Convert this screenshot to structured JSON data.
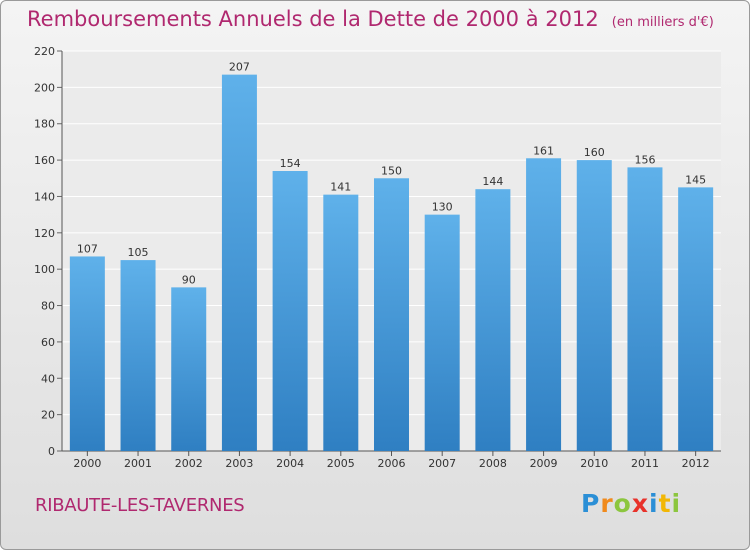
{
  "header": {
    "title": "Remboursements Annuels de la Dette de 2000 à 2012",
    "unit": "(en milliers d'€)"
  },
  "footer": {
    "commune": "RIBAUTE-LES-TAVERNES",
    "logo": "Proxiti"
  },
  "colors": {
    "title": "#b0286f",
    "bar_light": "#5fb1ea",
    "bar_dark": "#2f7fc2"
  },
  "chart_data": {
    "type": "bar",
    "title": "Remboursements Annuels de la Dette de 2000 à 2012",
    "subtitle": "(en milliers d'€)",
    "categories": [
      "2000",
      "2001",
      "2002",
      "2003",
      "2004",
      "2005",
      "2006",
      "2007",
      "2008",
      "2009",
      "2010",
      "2011",
      "2012"
    ],
    "values": [
      107,
      105,
      90,
      207,
      154,
      141,
      150,
      130,
      144,
      161,
      160,
      156,
      145
    ],
    "ylim": [
      0,
      220
    ],
    "yticks": [
      0,
      20,
      40,
      60,
      80,
      100,
      120,
      140,
      160,
      180,
      200,
      220
    ],
    "grid": true,
    "data_labels": true
  }
}
